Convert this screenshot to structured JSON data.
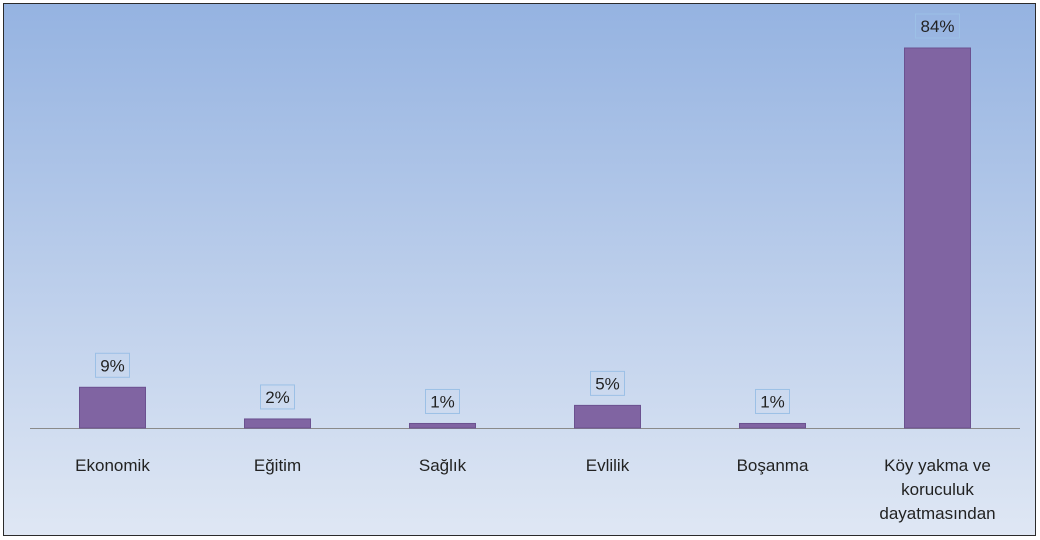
{
  "chart_data": {
    "type": "bar",
    "title": "",
    "xlabel": "",
    "ylabel": "",
    "categories": [
      [
        "Ekonomik"
      ],
      [
        "Eğitim"
      ],
      [
        "Sağlık"
      ],
      [
        "Evlilik"
      ],
      [
        "Boşanma"
      ],
      [
        "Köy yakma ve",
        "koruculuk",
        "dayatmasından"
      ]
    ],
    "series": [
      {
        "values": [
          9,
          2,
          1,
          5,
          1,
          84
        ],
        "data_labels": [
          "9%",
          "2%",
          "1%",
          "5%",
          "1%",
          "84%"
        ]
      }
    ],
    "ylim": [
      0,
      100
    ],
    "value_unit": "%",
    "grid": false,
    "legend": "none",
    "colors": {
      "bar_fill": "#8064a2",
      "bar_stroke": "#6b5190",
      "background_top": "#95b3e1",
      "background_bottom": "#dfe7f4",
      "axis": "#8a8a8a",
      "label_box_stroke": "#9cc0e6"
    }
  }
}
